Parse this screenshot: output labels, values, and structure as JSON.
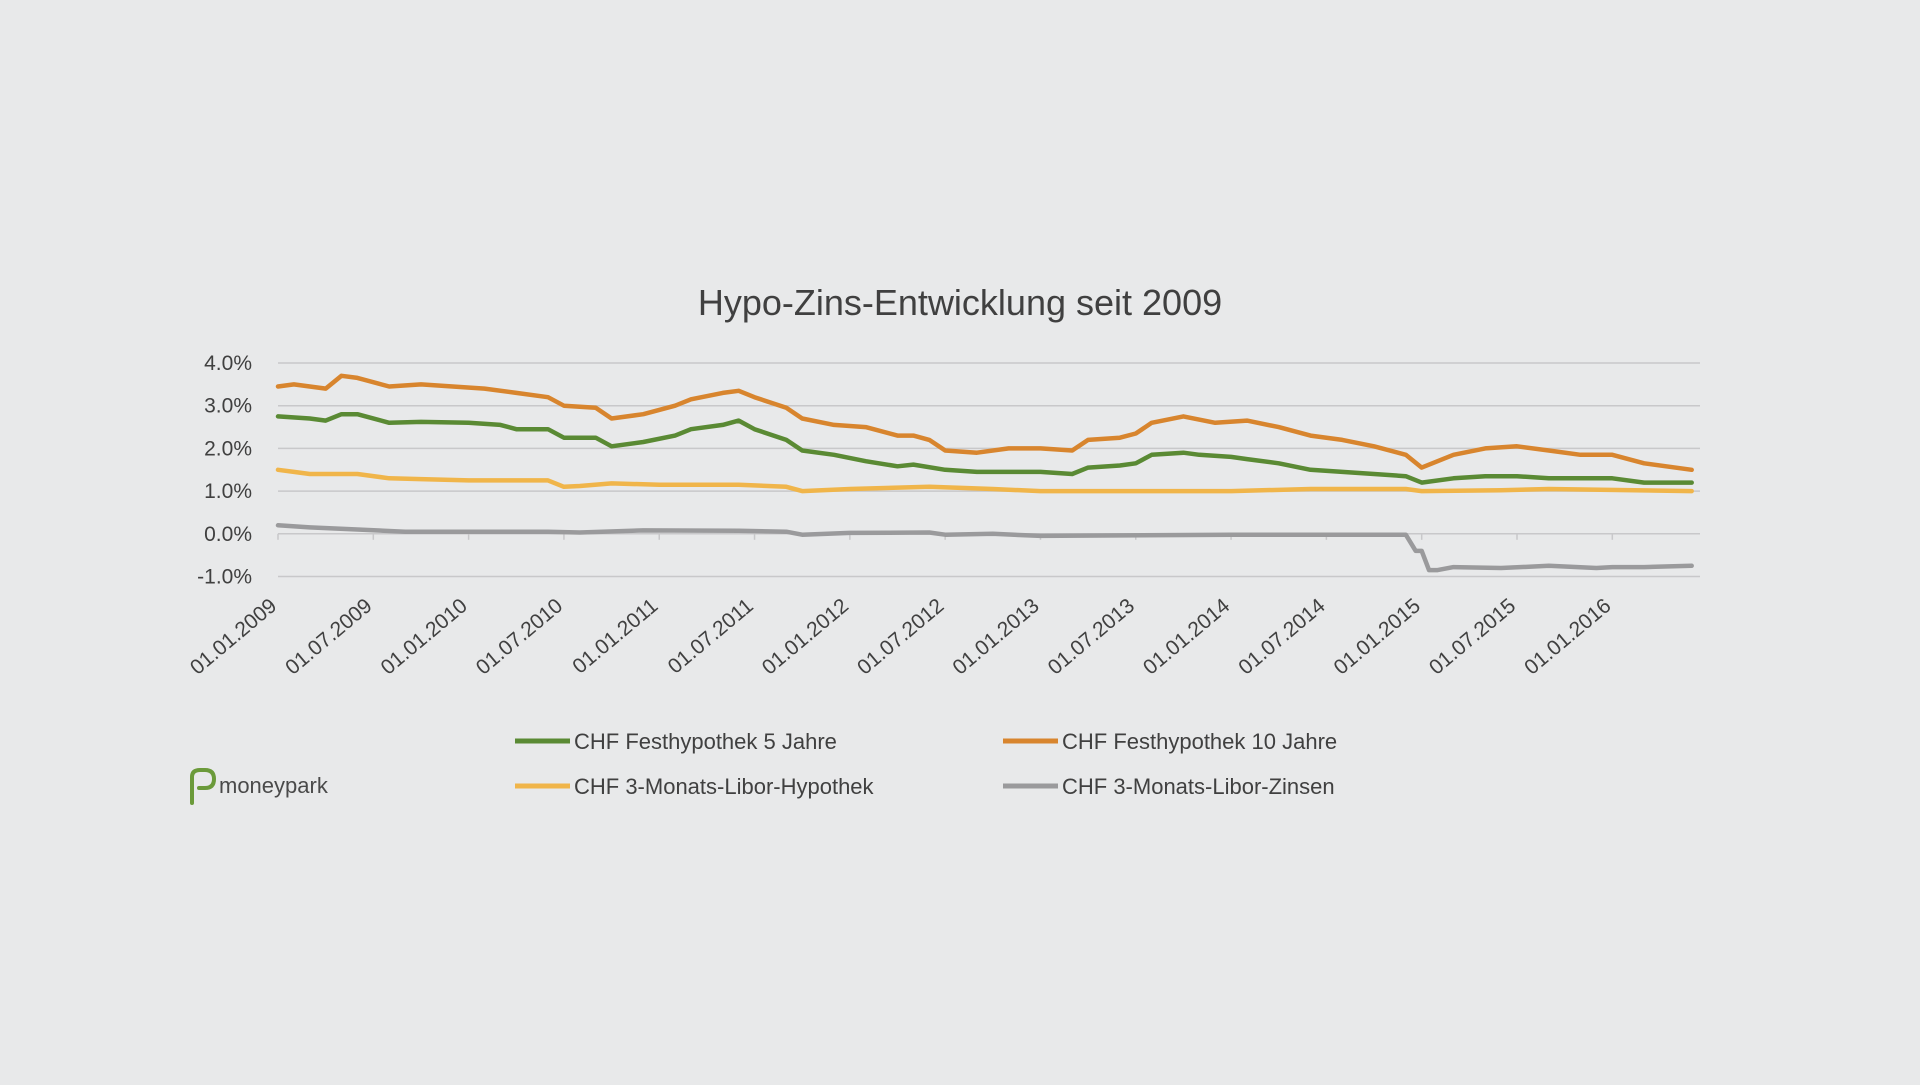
{
  "brand": {
    "name": "moneypark",
    "logo_color": "#6b9a3a"
  },
  "chart_data": {
    "type": "line",
    "title": "Hypo-Zins-Entwicklung seit 2009",
    "xlabel": "",
    "ylabel": "",
    "ylim": [
      -1.0,
      4.0
    ],
    "yticks": [
      4.0,
      3.0,
      2.0,
      1.0,
      0.0,
      -1.0
    ],
    "ytick_labels": [
      "4.0%",
      "3.0%",
      "2.0%",
      "1.0%",
      "0.0%",
      "-1.0%"
    ],
    "x_tick_labels": [
      "01.01.2009",
      "01.07.2009",
      "01.01.2010",
      "01.07.2010",
      "01.01.2011",
      "01.07.2011",
      "01.01.2012",
      "01.07.2012",
      "01.01.2013",
      "01.07.2013",
      "01.01.2014",
      "01.07.2014",
      "01.01.2015",
      "01.07.2015",
      "01.01.2016"
    ],
    "xlim": [
      "2009-01",
      "2016-06"
    ],
    "grid": true,
    "legend_position": "bottom",
    "series": [
      {
        "name": "CHF Festhypothek 5 Jahre",
        "color": "#5a8a34",
        "points": [
          [
            "2009-01",
            2.75
          ],
          [
            "2009-03",
            2.7
          ],
          [
            "2009-04",
            2.65
          ],
          [
            "2009-05",
            2.8
          ],
          [
            "2009-06",
            2.8
          ],
          [
            "2009-08",
            2.6
          ],
          [
            "2009-10",
            2.62
          ],
          [
            "2010-01",
            2.6
          ],
          [
            "2010-03",
            2.55
          ],
          [
            "2010-04",
            2.45
          ],
          [
            "2010-06",
            2.45
          ],
          [
            "2010-07",
            2.25
          ],
          [
            "2010-09",
            2.25
          ],
          [
            "2010-10",
            2.05
          ],
          [
            "2010-12",
            2.15
          ],
          [
            "2011-02",
            2.3
          ],
          [
            "2011-03",
            2.45
          ],
          [
            "2011-05",
            2.55
          ],
          [
            "2011-06",
            2.65
          ],
          [
            "2011-07",
            2.45
          ],
          [
            "2011-09",
            2.2
          ],
          [
            "2011-10",
            1.95
          ],
          [
            "2011-12",
            1.85
          ],
          [
            "2012-02",
            1.7
          ],
          [
            "2012-04",
            1.58
          ],
          [
            "2012-05",
            1.62
          ],
          [
            "2012-07",
            1.5
          ],
          [
            "2012-09",
            1.45
          ],
          [
            "2012-11",
            1.45
          ],
          [
            "2013-01",
            1.45
          ],
          [
            "2013-03",
            1.4
          ],
          [
            "2013-04",
            1.55
          ],
          [
            "2013-06",
            1.6
          ],
          [
            "2013-07",
            1.65
          ],
          [
            "2013-08",
            1.85
          ],
          [
            "2013-10",
            1.9
          ],
          [
            "2013-11",
            1.85
          ],
          [
            "2014-01",
            1.8
          ],
          [
            "2014-02",
            1.75
          ],
          [
            "2014-04",
            1.65
          ],
          [
            "2014-06",
            1.5
          ],
          [
            "2014-08",
            1.45
          ],
          [
            "2014-10",
            1.4
          ],
          [
            "2014-12",
            1.35
          ],
          [
            "2015-01",
            1.2
          ],
          [
            "2015-03",
            1.3
          ],
          [
            "2015-05",
            1.35
          ],
          [
            "2015-07",
            1.35
          ],
          [
            "2015-09",
            1.3
          ],
          [
            "2015-11",
            1.3
          ],
          [
            "2016-01",
            1.3
          ],
          [
            "2016-03",
            1.2
          ],
          [
            "2016-06",
            1.2
          ]
        ]
      },
      {
        "name": "CHF Festhypothek 10 Jahre",
        "color": "#d8852e",
        "points": [
          [
            "2009-01",
            3.45
          ],
          [
            "2009-02",
            3.5
          ],
          [
            "2009-04",
            3.4
          ],
          [
            "2009-05",
            3.7
          ],
          [
            "2009-06",
            3.65
          ],
          [
            "2009-08",
            3.45
          ],
          [
            "2009-10",
            3.5
          ],
          [
            "2009-12",
            3.45
          ],
          [
            "2010-02",
            3.4
          ],
          [
            "2010-04",
            3.3
          ],
          [
            "2010-06",
            3.2
          ],
          [
            "2010-07",
            3.0
          ],
          [
            "2010-09",
            2.95
          ],
          [
            "2010-10",
            2.7
          ],
          [
            "2010-12",
            2.8
          ],
          [
            "2011-02",
            3.0
          ],
          [
            "2011-03",
            3.15
          ],
          [
            "2011-05",
            3.3
          ],
          [
            "2011-06",
            3.35
          ],
          [
            "2011-07",
            3.2
          ],
          [
            "2011-09",
            2.95
          ],
          [
            "2011-10",
            2.7
          ],
          [
            "2011-12",
            2.55
          ],
          [
            "2012-02",
            2.5
          ],
          [
            "2012-04",
            2.3
          ],
          [
            "2012-05",
            2.3
          ],
          [
            "2012-06",
            2.2
          ],
          [
            "2012-07",
            1.95
          ],
          [
            "2012-09",
            1.9
          ],
          [
            "2012-11",
            2.0
          ],
          [
            "2013-01",
            2.0
          ],
          [
            "2013-03",
            1.95
          ],
          [
            "2013-04",
            2.2
          ],
          [
            "2013-06",
            2.25
          ],
          [
            "2013-07",
            2.35
          ],
          [
            "2013-08",
            2.6
          ],
          [
            "2013-10",
            2.75
          ],
          [
            "2013-12",
            2.6
          ],
          [
            "2014-02",
            2.65
          ],
          [
            "2014-04",
            2.5
          ],
          [
            "2014-06",
            2.3
          ],
          [
            "2014-08",
            2.2
          ],
          [
            "2014-10",
            2.05
          ],
          [
            "2014-12",
            1.85
          ],
          [
            "2015-01",
            1.55
          ],
          [
            "2015-03",
            1.85
          ],
          [
            "2015-05",
            2.0
          ],
          [
            "2015-07",
            2.05
          ],
          [
            "2015-09",
            1.95
          ],
          [
            "2015-11",
            1.85
          ],
          [
            "2016-01",
            1.85
          ],
          [
            "2016-03",
            1.65
          ],
          [
            "2016-06",
            1.5
          ]
        ]
      },
      {
        "name": "CHF 3-Monats-Libor-Hypothek",
        "color": "#f0b54a",
        "points": [
          [
            "2009-01",
            1.5
          ],
          [
            "2009-02",
            1.45
          ],
          [
            "2009-03",
            1.4
          ],
          [
            "2009-06",
            1.4
          ],
          [
            "2009-08",
            1.3
          ],
          [
            "2009-10",
            1.28
          ],
          [
            "2010-01",
            1.25
          ],
          [
            "2010-06",
            1.25
          ],
          [
            "2010-07",
            1.1
          ],
          [
            "2010-08",
            1.12
          ],
          [
            "2010-10",
            1.18
          ],
          [
            "2011-01",
            1.15
          ],
          [
            "2011-06",
            1.15
          ],
          [
            "2011-09",
            1.1
          ],
          [
            "2011-10",
            1.0
          ],
          [
            "2012-01",
            1.05
          ],
          [
            "2012-06",
            1.1
          ],
          [
            "2012-10",
            1.05
          ],
          [
            "2013-01",
            1.0
          ],
          [
            "2014-01",
            1.0
          ],
          [
            "2014-06",
            1.05
          ],
          [
            "2014-12",
            1.05
          ],
          [
            "2015-01",
            1.0
          ],
          [
            "2015-06",
            1.02
          ],
          [
            "2015-09",
            1.05
          ],
          [
            "2016-06",
            1.0
          ]
        ]
      },
      {
        "name": "CHF 3-Monats-Libor-Zinsen",
        "color": "#9a9a9c",
        "points": [
          [
            "2009-01",
            0.2
          ],
          [
            "2009-03",
            0.15
          ],
          [
            "2009-06",
            0.1
          ],
          [
            "2009-09",
            0.05
          ],
          [
            "2010-01",
            0.05
          ],
          [
            "2010-06",
            0.05
          ],
          [
            "2010-08",
            0.03
          ],
          [
            "2010-12",
            0.08
          ],
          [
            "2011-06",
            0.07
          ],
          [
            "2011-09",
            0.05
          ],
          [
            "2011-10",
            -0.02
          ],
          [
            "2012-01",
            0.02
          ],
          [
            "2012-06",
            0.03
          ],
          [
            "2012-07",
            -0.02
          ],
          [
            "2012-10",
            0.0
          ],
          [
            "2013-01",
            -0.05
          ],
          [
            "2014-01",
            -0.02
          ],
          [
            "2014-12",
            -0.02
          ],
          [
            "2014-12-20",
            -0.4
          ],
          [
            "2015-01",
            -0.4
          ],
          [
            "2015-01-15",
            -0.85
          ],
          [
            "2015-02",
            -0.85
          ],
          [
            "2015-03",
            -0.78
          ],
          [
            "2015-06",
            -0.8
          ],
          [
            "2015-09",
            -0.75
          ],
          [
            "2015-12",
            -0.8
          ],
          [
            "2016-01",
            -0.78
          ],
          [
            "2016-03",
            -0.78
          ],
          [
            "2016-06",
            -0.75
          ]
        ]
      }
    ]
  }
}
